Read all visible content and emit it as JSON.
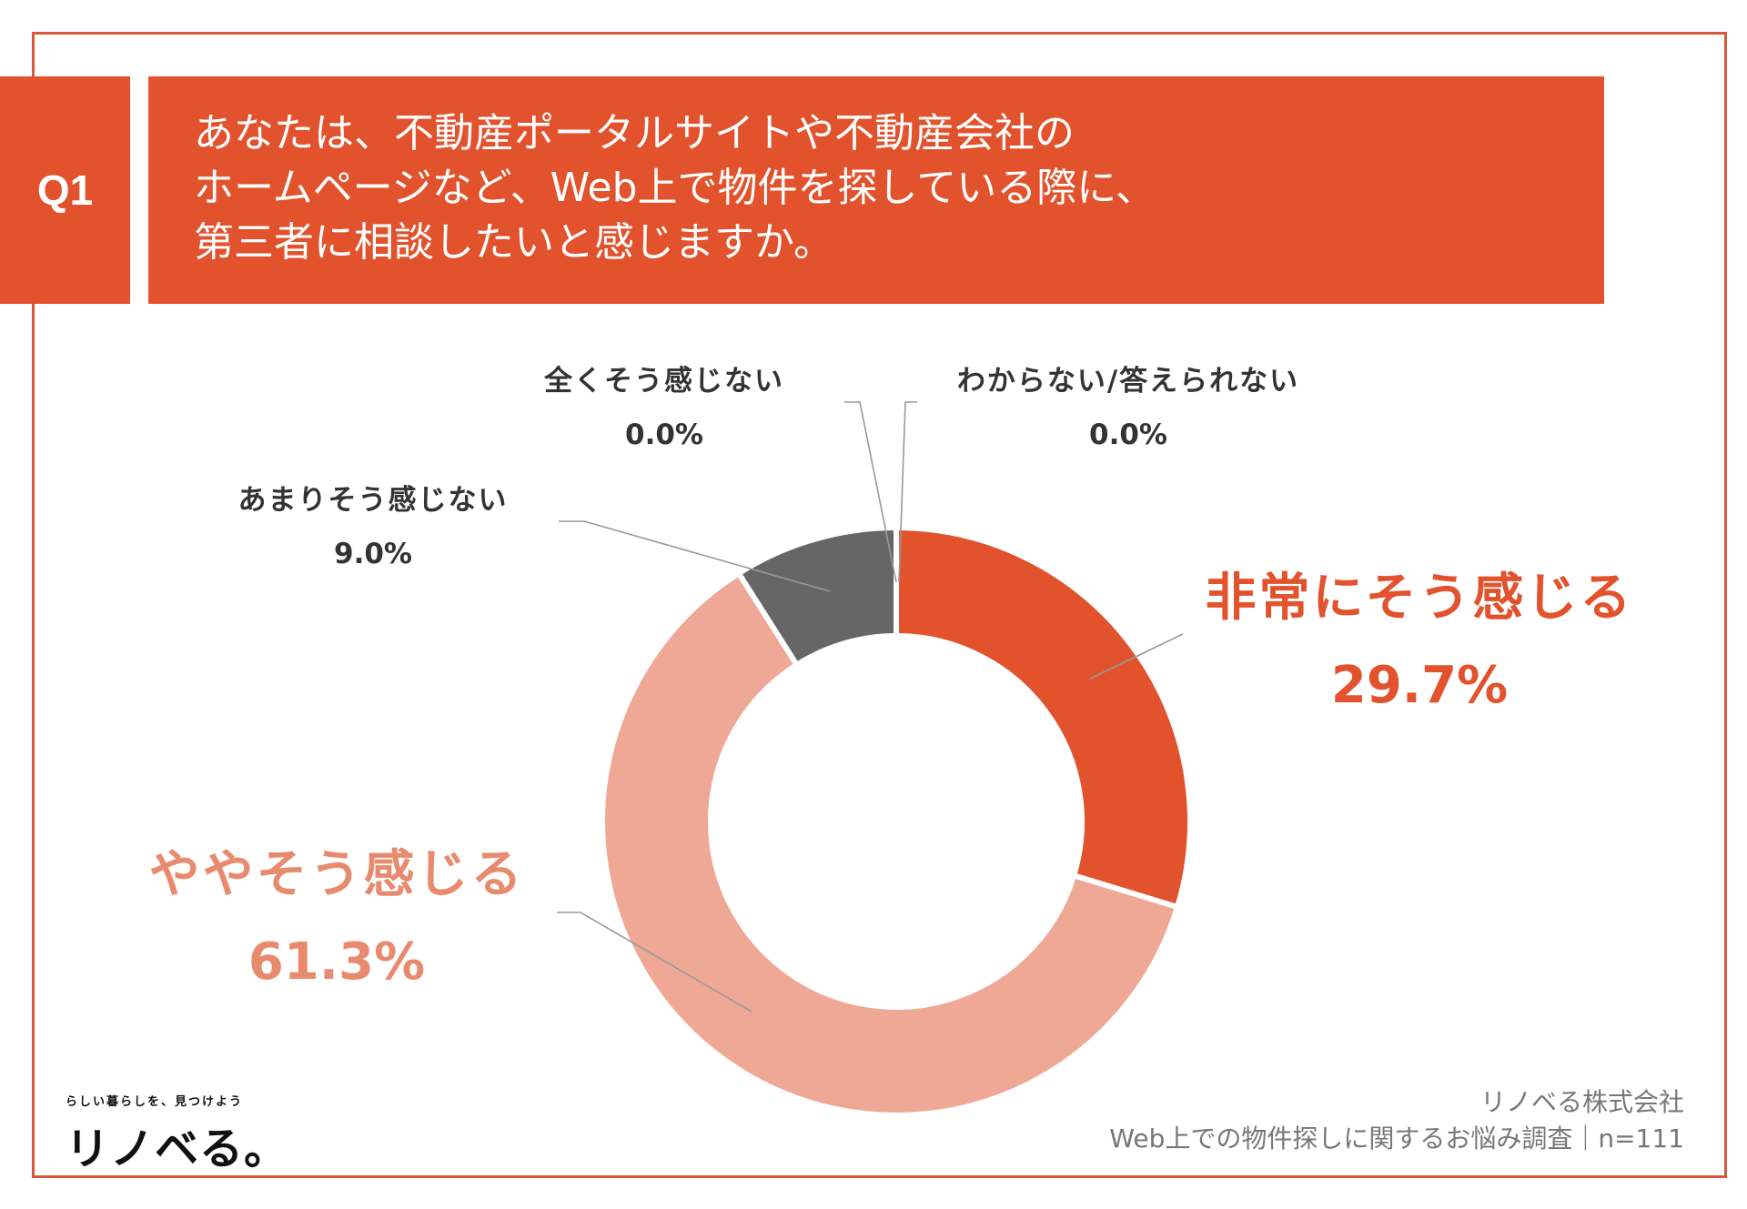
{
  "question": {
    "badge": "Q1",
    "lines": [
      "あなたは、不動産ポータルサイトや不動産会社の",
      "ホームページなど、Web上で物件を探している際に、",
      "第三者に相談したいと感じますか。"
    ]
  },
  "chart_data": {
    "type": "pie",
    "variant": "donut",
    "start_angle_deg": 0,
    "direction": "clockwise",
    "segments": [
      {
        "name": "非常にそう感じる",
        "value": 29.7,
        "label": "29.7%",
        "color": "#e1522d",
        "label_color": "#e1522d"
      },
      {
        "name": "ややそう感じる",
        "value": 61.3,
        "label": "61.3%",
        "color": "#f0a896",
        "label_color": "#e88a6e"
      },
      {
        "name": "あまりそう感じない",
        "value": 9.0,
        "label": "9.0%",
        "color": "#666666",
        "label_color": "#333333"
      },
      {
        "name": "全くそう感じない",
        "value": 0.0,
        "label": "0.0%",
        "color": "#999999",
        "label_color": "#333333"
      },
      {
        "name": "わからない/答えられない",
        "value": 0.0,
        "label": "0.0%",
        "color": "#bbbbbb",
        "label_color": "#333333"
      }
    ]
  },
  "footer": {
    "logo_tagline": "らしい暮らしを、見つけよう",
    "logo_name": "リノベる。",
    "company": "リノベる株式会社",
    "survey": "Web上での物件探しに関するお悩み調査｜n=111"
  },
  "colors": {
    "accent": "#e1522d",
    "frame": "#d9573a",
    "leader": "#999999"
  }
}
